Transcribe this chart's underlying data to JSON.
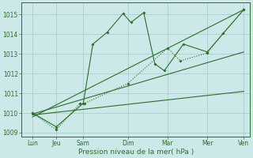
{
  "xlabel": "Pression niveau de la mer( hPa )",
  "background_color": "#cce8e8",
  "grid_color": "#aacfcf",
  "line_color": "#2d6e2d",
  "ylim": [
    1008.8,
    1015.6
  ],
  "xlim": [
    -0.2,
    14.2
  ],
  "yticks": [
    1009,
    1010,
    1011,
    1012,
    1013,
    1014,
    1015
  ],
  "xtick_positions": [
    0.5,
    2.0,
    3.7,
    6.5,
    9.0,
    11.5,
    13.8
  ],
  "xtick_labels": [
    "Lun",
    "Jeu",
    "Sam",
    "Dim",
    "Mar",
    "Mer",
    "Ven"
  ],
  "series1_x": [
    0.5,
    2.0,
    3.7,
    4.3,
    5.2,
    6.2,
    6.7,
    7.5,
    8.2,
    8.8,
    10.0,
    11.5,
    13.8
  ],
  "series1_y": [
    1010.0,
    1009.3,
    1010.5,
    1013.5,
    1014.1,
    1015.05,
    1014.6,
    1015.1,
    1012.5,
    1012.15,
    1013.5,
    1013.1,
    1015.25
  ],
  "series2_x": [
    0.5,
    2.0,
    3.5,
    3.8,
    6.5,
    9.0,
    9.8,
    11.5,
    12.5,
    13.8
  ],
  "series2_y": [
    1010.0,
    1009.15,
    1010.5,
    1010.5,
    1011.5,
    1013.3,
    1012.65,
    1013.05,
    1014.05,
    1015.25
  ],
  "series3_x": [
    0.5,
    13.8
  ],
  "series3_y": [
    1009.8,
    1015.25
  ],
  "series4_x": [
    0.5,
    13.8
  ],
  "series4_y": [
    1009.9,
    1011.1
  ],
  "series5_x": [
    0.5,
    13.8
  ],
  "series5_y": [
    1009.95,
    1013.1
  ]
}
